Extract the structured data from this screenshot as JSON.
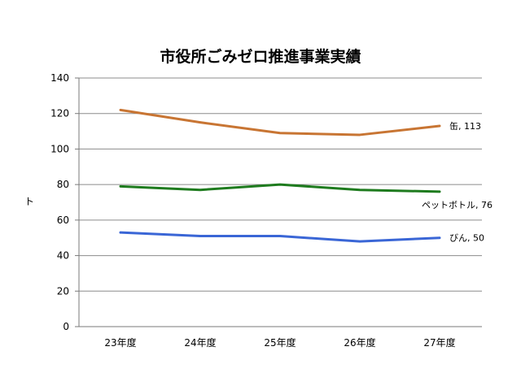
{
  "chart_data": {
    "type": "line",
    "title": "市役所ごみゼロ推進事業実績",
    "xlabel": "",
    "ylabel": "ト",
    "categories": [
      "23年度",
      "24年度",
      "25年度",
      "26年度",
      "27年度"
    ],
    "ylim": [
      0,
      140
    ],
    "yticks": [
      0,
      20,
      40,
      60,
      80,
      100,
      120,
      140
    ],
    "grid": true,
    "legend": "none",
    "series": [
      {
        "name": "缶",
        "values": [
          122,
          115,
          109,
          108,
          113
        ],
        "color": "#c87533",
        "end_label": "缶, 113"
      },
      {
        "name": "ペットボトル",
        "values": [
          79,
          77,
          80,
          77,
          76
        ],
        "color": "#1e7b1e",
        "end_label": "ペットボトル, 76"
      },
      {
        "name": "びん",
        "values": [
          53,
          51,
          51,
          48,
          50
        ],
        "color": "#3a66d6",
        "end_label": "びん, 50"
      }
    ]
  }
}
